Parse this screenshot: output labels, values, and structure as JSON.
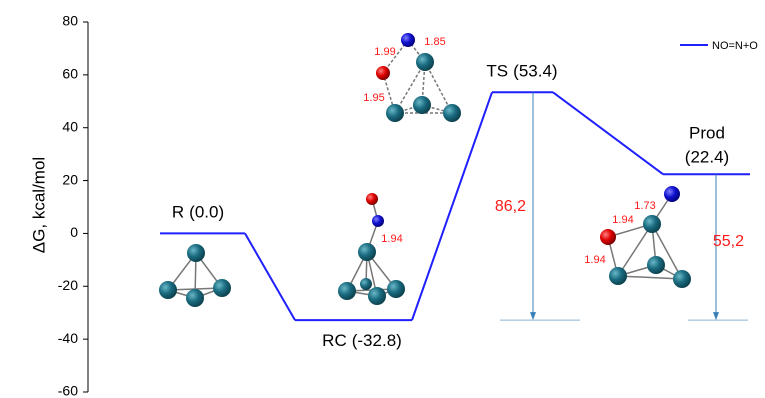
{
  "chart_data": {
    "type": "energy-profile",
    "y_label": "ΔG, kcal/mol",
    "categories": [
      "R",
      "RC",
      "TS",
      "Prod"
    ],
    "series": [
      {
        "name": "NO=N+O",
        "color": "#1f1fff",
        "values": [
          0,
          -32.8,
          53.4,
          22.4
        ],
        "value_labels": [
          "(0.0)",
          "(-32.8)",
          "(53.4)",
          "(22.4)"
        ]
      }
    ],
    "barriers": {
      "color": "#3a7fb5",
      "label_color": "#ff1a1a",
      "values": [
        null,
        null,
        86.2,
        55.2
      ],
      "value_labels": [
        null,
        null,
        "86,2",
        "55,2"
      ]
    },
    "bond_labels": [
      [],
      [
        "1.94"
      ],
      [
        "1.99",
        "1.85",
        "1.95"
      ],
      [
        "1.73",
        "1.94",
        "1.94"
      ]
    ],
    "ylim": [
      -60,
      80
    ],
    "yticks": [
      -60,
      -40,
      -20,
      0,
      20,
      40,
      60,
      80
    ],
    "legend": "top-right"
  }
}
